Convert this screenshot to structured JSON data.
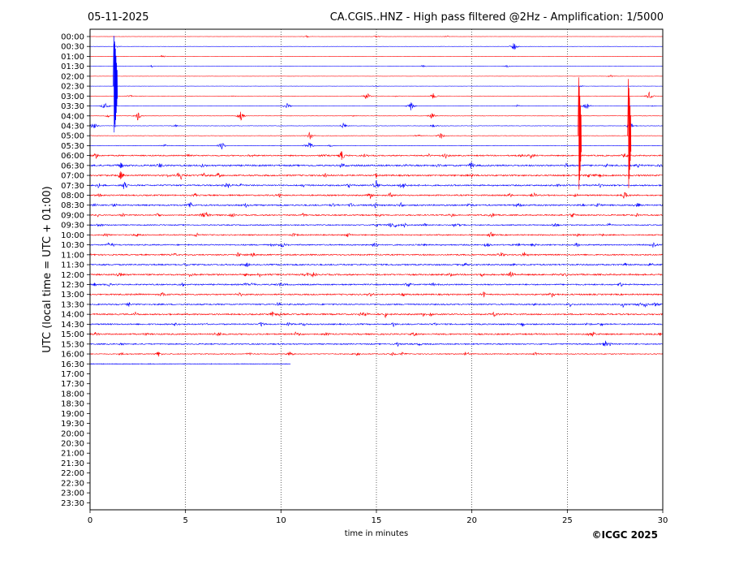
{
  "header": {
    "date": "05-11-2025",
    "station_title": "CA.CGIS..HNZ - High pass filtered @2Hz - Amplification: 1/5000"
  },
  "copyright": "©ICGC 2025",
  "chart_data": {
    "type": "line",
    "title": "CA.CGIS..HNZ - High pass filtered @2Hz - Amplification: 1/5000",
    "xlabel": "time in minutes",
    "ylabel": "UTC (local time = UTC + 01:00)",
    "xlim": [
      0,
      30
    ],
    "x_ticks": [
      0,
      5,
      10,
      15,
      20,
      25,
      30
    ],
    "x_tick_labels": [
      "0",
      "5",
      "10",
      "15",
      "20",
      "25",
      "30"
    ],
    "vertical_grid_dotted_at": [
      5,
      10,
      15,
      20,
      25
    ],
    "row_labels": [
      "00:00",
      "00:30",
      "01:00",
      "01:30",
      "02:00",
      "02:30",
      "03:00",
      "03:30",
      "04:00",
      "04:30",
      "05:00",
      "05:30",
      "06:00",
      "06:30",
      "07:00",
      "07:30",
      "08:00",
      "08:30",
      "09:00",
      "09:30",
      "10:00",
      "10:30",
      "11:00",
      "11:30",
      "12:00",
      "12:30",
      "13:00",
      "13:30",
      "14:00",
      "14:30",
      "15:00",
      "15:30",
      "16:00",
      "16:30",
      "17:00",
      "17:30",
      "18:00",
      "18:30",
      "19:00",
      "19:30",
      "20:00",
      "20:30",
      "21:00",
      "21:30",
      "22:00",
      "22:30",
      "23:00",
      "23:30"
    ],
    "trace_colors": [
      "#ff0000",
      "#0000ff"
    ],
    "traces_recorded_rows": 34,
    "last_trace_end_minutes": 10.5,
    "noise_levels": [
      0.12,
      0.12,
      0.12,
      0.12,
      0.12,
      0.12,
      0.12,
      0.15,
      0.2,
      0.25,
      0.25,
      0.3,
      0.7,
      0.9,
      0.85,
      0.8,
      0.75,
      0.8,
      0.7,
      0.6,
      0.65,
      0.7,
      0.75,
      0.8,
      0.85,
      0.75,
      0.8,
      0.75,
      0.8,
      0.75,
      0.8,
      0.7,
      0.5,
      0.2
    ],
    "transients": [
      {
        "row": 5,
        "x": 1.25,
        "amplitude": 62,
        "color": "#0000ff"
      },
      {
        "row": 5,
        "x": 1.3,
        "amplitude": 55,
        "color": "#0000ff"
      },
      {
        "row": 10,
        "x": 25.6,
        "amplitude": 72,
        "color": "#ff0000"
      },
      {
        "row": 10,
        "x": 28.2,
        "amplitude": 70,
        "color": "#ff0000"
      }
    ],
    "bursts": [
      {
        "row": 1,
        "x": 22.2,
        "amp": 6
      },
      {
        "row": 6,
        "x": 14.5,
        "amp": 5
      },
      {
        "row": 6,
        "x": 18.0,
        "amp": 5
      },
      {
        "row": 6,
        "x": 29.3,
        "amp": 5
      },
      {
        "row": 7,
        "x": 0.8,
        "amp": 6
      },
      {
        "row": 7,
        "x": 10.3,
        "amp": 5
      },
      {
        "row": 7,
        "x": 16.8,
        "amp": 6
      },
      {
        "row": 7,
        "x": 26.0,
        "amp": 6
      },
      {
        "row": 8,
        "x": 2.5,
        "amp": 6
      },
      {
        "row": 8,
        "x": 7.9,
        "amp": 6
      },
      {
        "row": 8,
        "x": 17.9,
        "amp": 5
      },
      {
        "row": 9,
        "x": 0.2,
        "amp": 5
      },
      {
        "row": 9,
        "x": 13.3,
        "amp": 5
      },
      {
        "row": 9,
        "x": 28.3,
        "amp": 6
      },
      {
        "row": 10,
        "x": 18.4,
        "amp": 5
      },
      {
        "row": 10,
        "x": 11.5,
        "amp": 6
      },
      {
        "row": 11,
        "x": 6.9,
        "amp": 5
      },
      {
        "row": 11,
        "x": 11.5,
        "amp": 7
      },
      {
        "row": 12,
        "x": 23.1,
        "amp": 5
      },
      {
        "row": 12,
        "x": 13.2,
        "amp": 7
      },
      {
        "row": 13,
        "x": 1.6,
        "amp": 5
      },
      {
        "row": 13,
        "x": 20.0,
        "amp": 6
      },
      {
        "row": 14,
        "x": 4.8,
        "amp": 6
      },
      {
        "row": 14,
        "x": 1.6,
        "amp": 6
      },
      {
        "row": 15,
        "x": 15.0,
        "amp": 6
      },
      {
        "row": 15,
        "x": 16.4,
        "amp": 7
      },
      {
        "row": 15,
        "x": 1.8,
        "amp": 6
      },
      {
        "row": 16,
        "x": 15.7,
        "amp": 5
      }
    ]
  }
}
